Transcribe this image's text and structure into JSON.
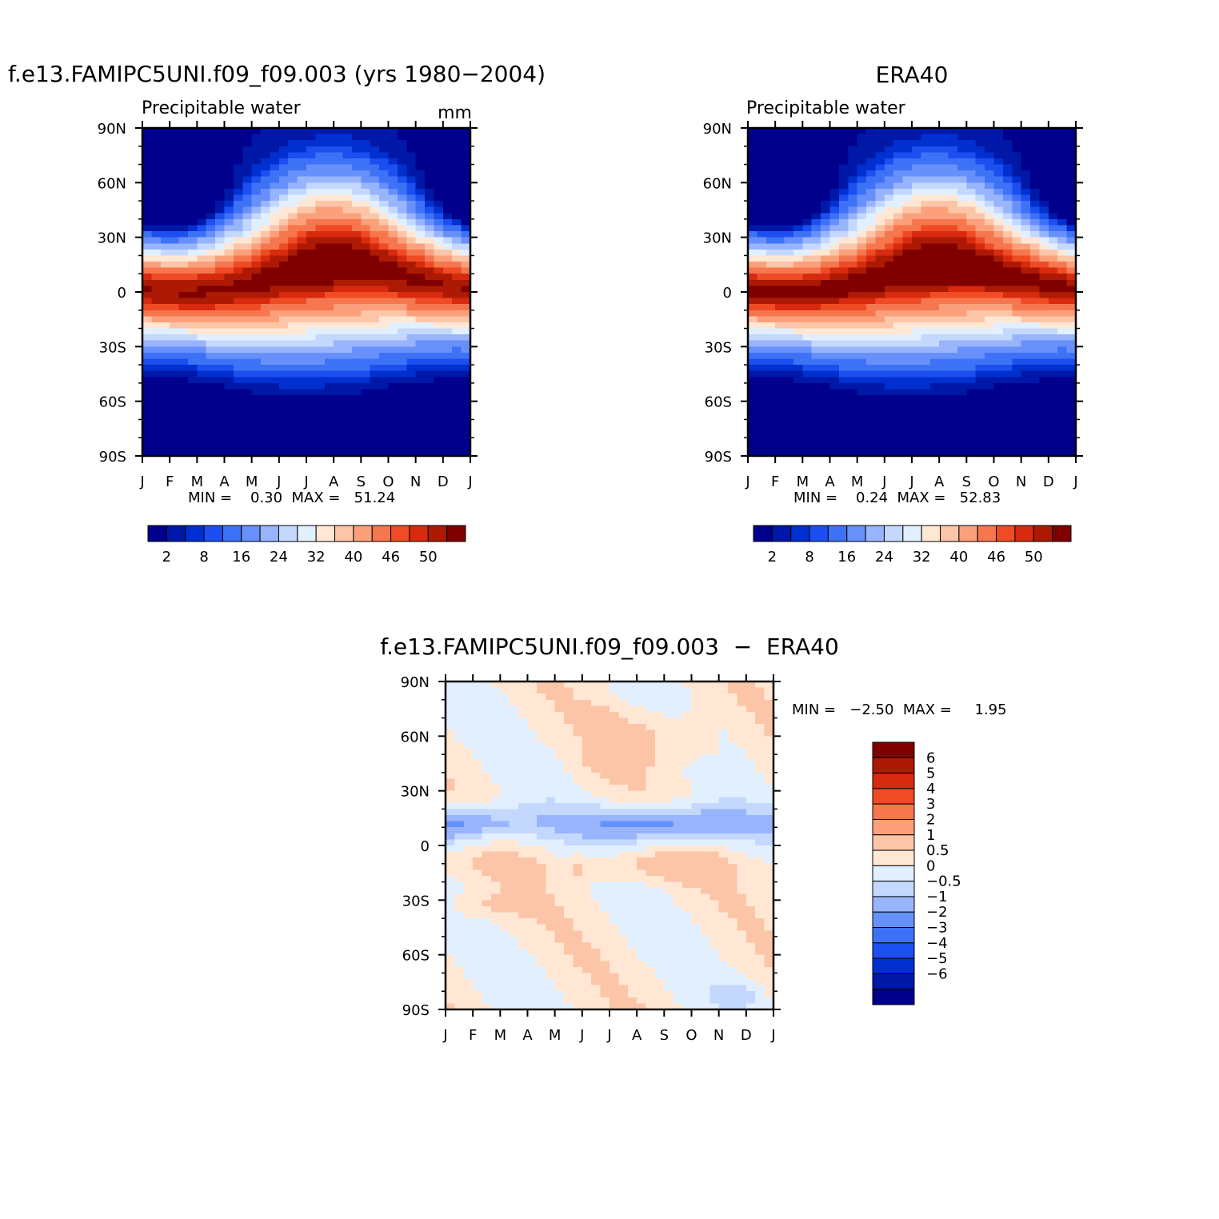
{
  "panels": [
    {
      "title": "f.e13.FAMIPC5UNI.f09_f09.003 (yrs 1980−2004)",
      "left_label": "Precipitable  water",
      "right_label": "mm",
      "stats": "MIN =    0.30  MAX =   51.24"
    },
    {
      "title": "ERA40",
      "left_label": "Precipitable  water",
      "right_label": "",
      "stats": "MIN =    0.24  MAX =   52.83"
    },
    {
      "title": "f.e13.FAMIPC5UNI.f09_f09.003  −  ERA40",
      "stats": "MIN =   −2.50  MAX =     1.95"
    }
  ],
  "colors": {
    "abs_scale": [
      "#00008c",
      "#0018a8",
      "#0030d0",
      "#1c4fef",
      "#3e72f6",
      "#6890fb",
      "#98b4fc",
      "#c4d8fd",
      "#e1efff",
      "#ffe7d4",
      "#fcc5a7",
      "#fba07b",
      "#f6764e",
      "#ef4b24",
      "#d82a0e",
      "#ad1a04",
      "#800000"
    ],
    "diff_scale": [
      "#00008c",
      "#0018a8",
      "#0030d0",
      "#1c4fef",
      "#3e72f6",
      "#6890fb",
      "#98b4fc",
      "#c4d8fd",
      "#e1efff",
      "#ffe7d4",
      "#fcc5a7",
      "#fba07b",
      "#f6764e",
      "#ef4b24",
      "#d82a0e",
      "#ad1a04",
      "#800000"
    ]
  },
  "chart_data": [
    {
      "type": "heatmap",
      "title": "f.e13.FAMIPC5UNI.f09_f09.003 (yrs 1980−2004)",
      "subtitle": "Precipitable  water",
      "units": "mm",
      "x_tick_labels": [
        "J",
        "F",
        "M",
        "A",
        "M",
        "J",
        "J",
        "A",
        "S",
        "O",
        "N",
        "D",
        "J"
      ],
      "y_tick_labels": [
        "90N",
        "60N",
        "30N",
        "0",
        "30S",
        "60S",
        "90S"
      ],
      "y_ticks": [
        90,
        60,
        30,
        0,
        -30,
        -60,
        -90
      ],
      "xlim": [
        0,
        12
      ],
      "ylim": [
        -90,
        90
      ],
      "colorbar_labels": [
        "2",
        "8",
        "16",
        "24",
        "32",
        "40",
        "46",
        "50"
      ],
      "levels": [
        2,
        4,
        6,
        8,
        12,
        16,
        20,
        24,
        28,
        32,
        36,
        40,
        44,
        46,
        48,
        50
      ],
      "min": 0.3,
      "max": 51.24
    },
    {
      "type": "heatmap",
      "title": "ERA40",
      "subtitle": "Precipitable  water",
      "x_tick_labels": [
        "J",
        "F",
        "M",
        "A",
        "M",
        "J",
        "J",
        "A",
        "S",
        "O",
        "N",
        "D",
        "J"
      ],
      "y_tick_labels": [
        "90N",
        "60N",
        "30N",
        "0",
        "30S",
        "60S",
        "90S"
      ],
      "y_ticks": [
        90,
        60,
        30,
        0,
        -30,
        -60,
        -90
      ],
      "xlim": [
        0,
        12
      ],
      "ylim": [
        -90,
        90
      ],
      "colorbar_labels": [
        "2",
        "8",
        "16",
        "24",
        "32",
        "40",
        "46",
        "50"
      ],
      "levels": [
        2,
        4,
        6,
        8,
        12,
        16,
        20,
        24,
        28,
        32,
        36,
        40,
        44,
        46,
        48,
        50
      ],
      "min": 0.24,
      "max": 52.83
    },
    {
      "type": "heatmap",
      "title": "f.e13.FAMIPC5UNI.f09_f09.003  −  ERA40",
      "x_tick_labels": [
        "J",
        "F",
        "M",
        "A",
        "M",
        "J",
        "J",
        "A",
        "S",
        "O",
        "N",
        "D",
        "J"
      ],
      "y_tick_labels": [
        "90N",
        "60N",
        "30N",
        "0",
        "30S",
        "60S",
        "90S"
      ],
      "y_ticks": [
        90,
        60,
        30,
        0,
        -30,
        -60,
        -90
      ],
      "xlim": [
        0,
        12
      ],
      "ylim": [
        -90,
        90
      ],
      "colorbar_labels": [
        "6",
        "5",
        "4",
        "3",
        "2",
        "1",
        "0.5",
        "0",
        "−0.5",
        "−1",
        "−2",
        "−3",
        "−4",
        "−5",
        "−6"
      ],
      "levels": [
        -6,
        -5,
        -4,
        -3,
        -2,
        -1,
        -0.5,
        0,
        0.5,
        1,
        2,
        3,
        4,
        5,
        6
      ],
      "min": -2.5,
      "max": 1.95
    }
  ]
}
